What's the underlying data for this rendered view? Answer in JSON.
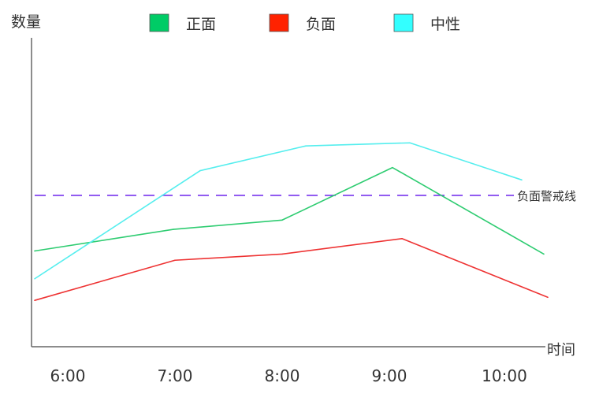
{
  "chart_data": {
    "type": "line",
    "ylabel": "数量",
    "xlabel": "时间",
    "categories": [
      "6:00",
      "7:00",
      "8:00",
      "9:00",
      "10:00"
    ],
    "ylim": [
      0,
      100
    ],
    "grid": false,
    "legend_position": "top",
    "series": [
      {
        "name": "正面",
        "color": "#2ecc71",
        "legend_color": "#00cc66",
        "x": [
          "6:00",
          "7:00",
          "8:00",
          "9:00",
          "10:00"
        ],
        "values": [
          31,
          38,
          41,
          58,
          30
        ]
      },
      {
        "name": "负面",
        "color": "#ee3333",
        "legend_color": "#ff2200",
        "x": [
          "6:00",
          "7:00",
          "8:00",
          "9:00",
          "10:00"
        ],
        "values": [
          15,
          28,
          30,
          35,
          16
        ]
      },
      {
        "name": "中性",
        "color": "#55eeee",
        "legend_color": "#33ffff",
        "x": [
          "6:00",
          "7:00",
          "8:00",
          "9:00",
          "10:00"
        ],
        "values": [
          22,
          57,
          65,
          66,
          54
        ]
      }
    ],
    "threshold": {
      "label": "负面警戒线",
      "value": 49,
      "color": "#7733ee",
      "style": "dashed"
    }
  }
}
